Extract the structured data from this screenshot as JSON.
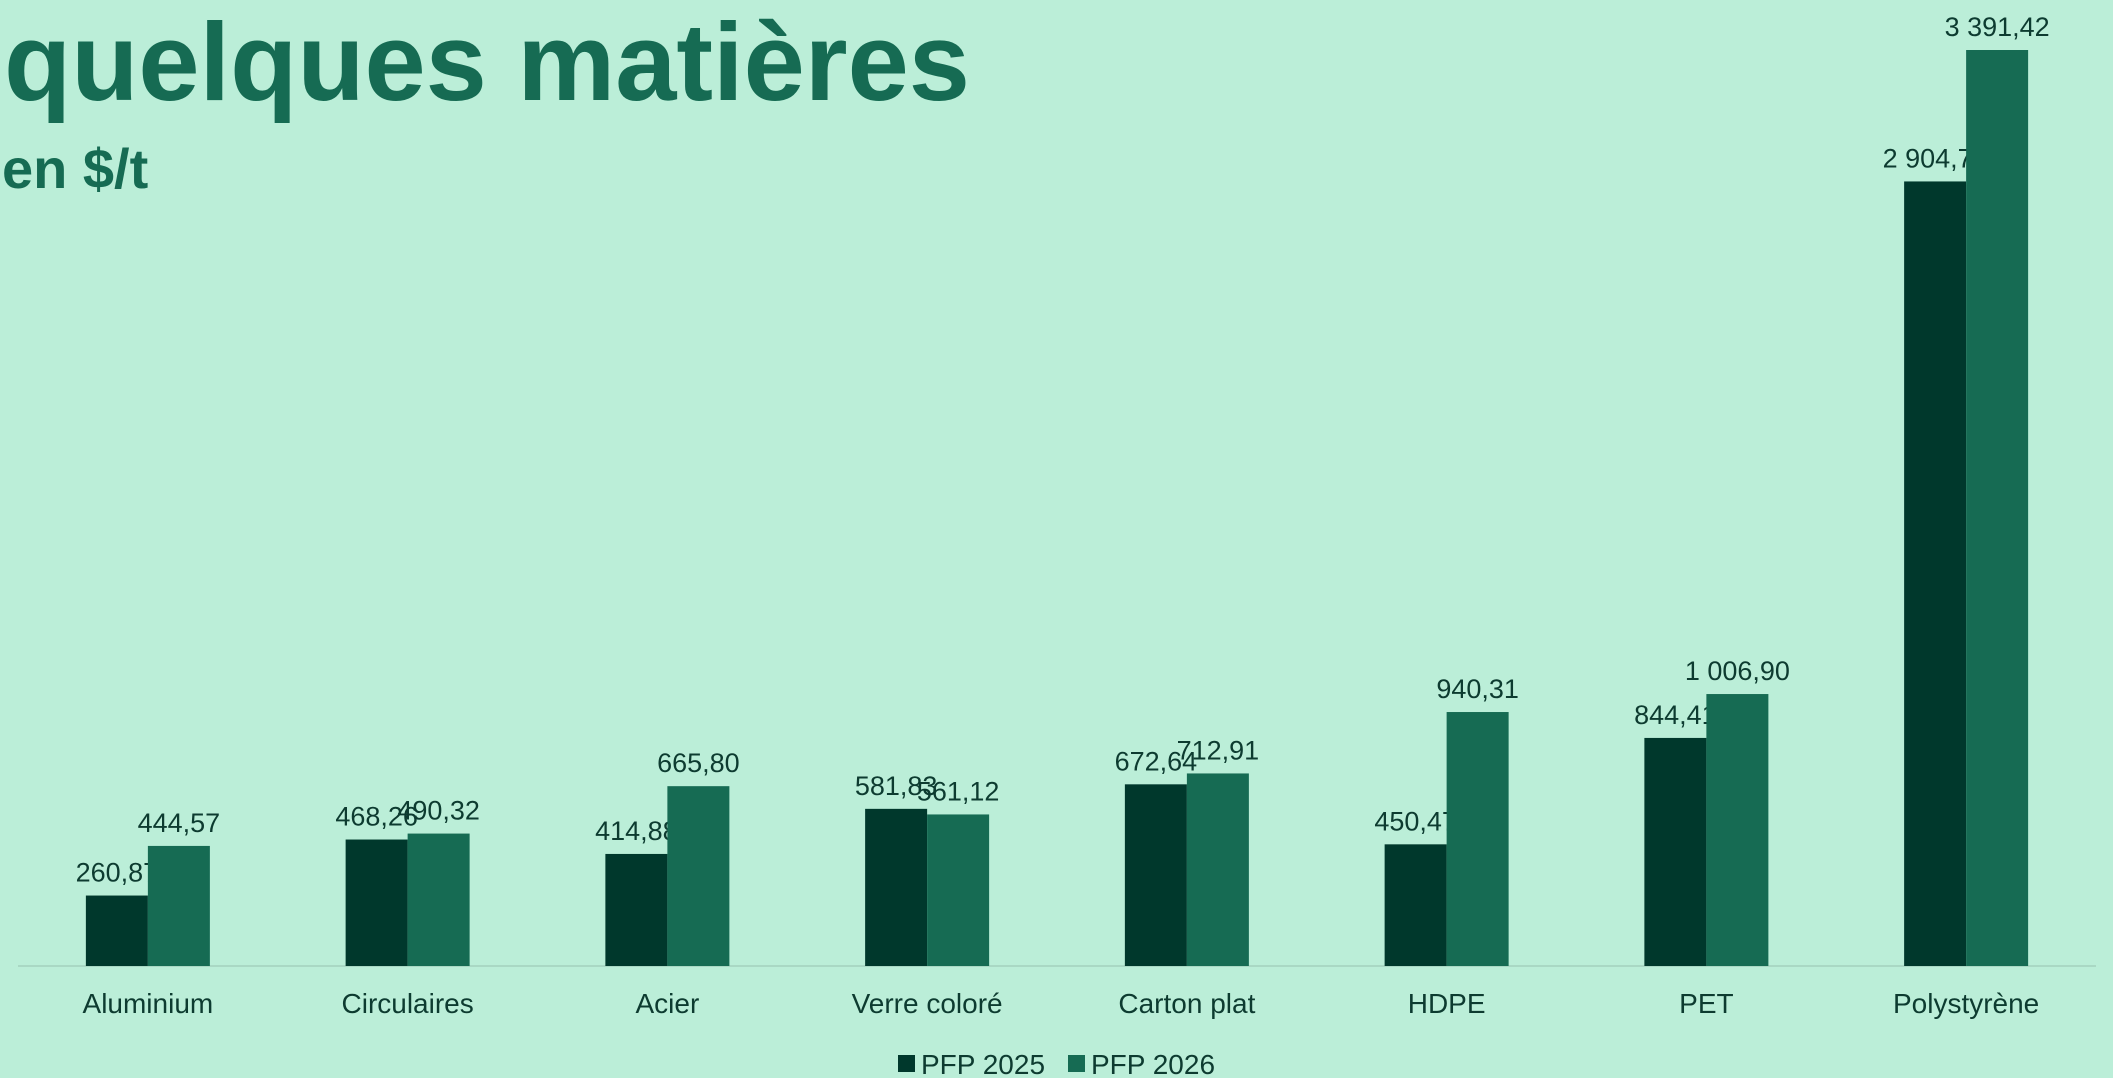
{
  "chart_data": {
    "type": "bar",
    "title": "quelques matières",
    "subtitle": "en $/t",
    "categories": [
      "Aluminium",
      "Circulaires",
      "Acier",
      "Verre coloré",
      "Carton plat",
      "HDPE",
      "PET",
      "Polystyrène"
    ],
    "series": [
      {
        "name": "PFP 2025",
        "color": "#00382c",
        "values": [
          260.87,
          468.26,
          414.88,
          581.83,
          672.64,
          450.47,
          844.41,
          2904.76
        ],
        "value_labels": [
          "260,87",
          "468,26",
          "414,88",
          "581,83",
          "672,64",
          "450,47",
          "844,41",
          "2 904,76"
        ]
      },
      {
        "name": "PFP 2026",
        "color": "#166b53",
        "values": [
          444.57,
          490.32,
          665.8,
          561.12,
          712.91,
          940.31,
          1006.9,
          3391.42
        ],
        "value_labels": [
          "444,57",
          "490,32",
          "665,80",
          "561,12",
          "712,91",
          "940,31",
          "1 006,90",
          "3 391,42"
        ]
      }
    ],
    "legend": "bottom"
  }
}
